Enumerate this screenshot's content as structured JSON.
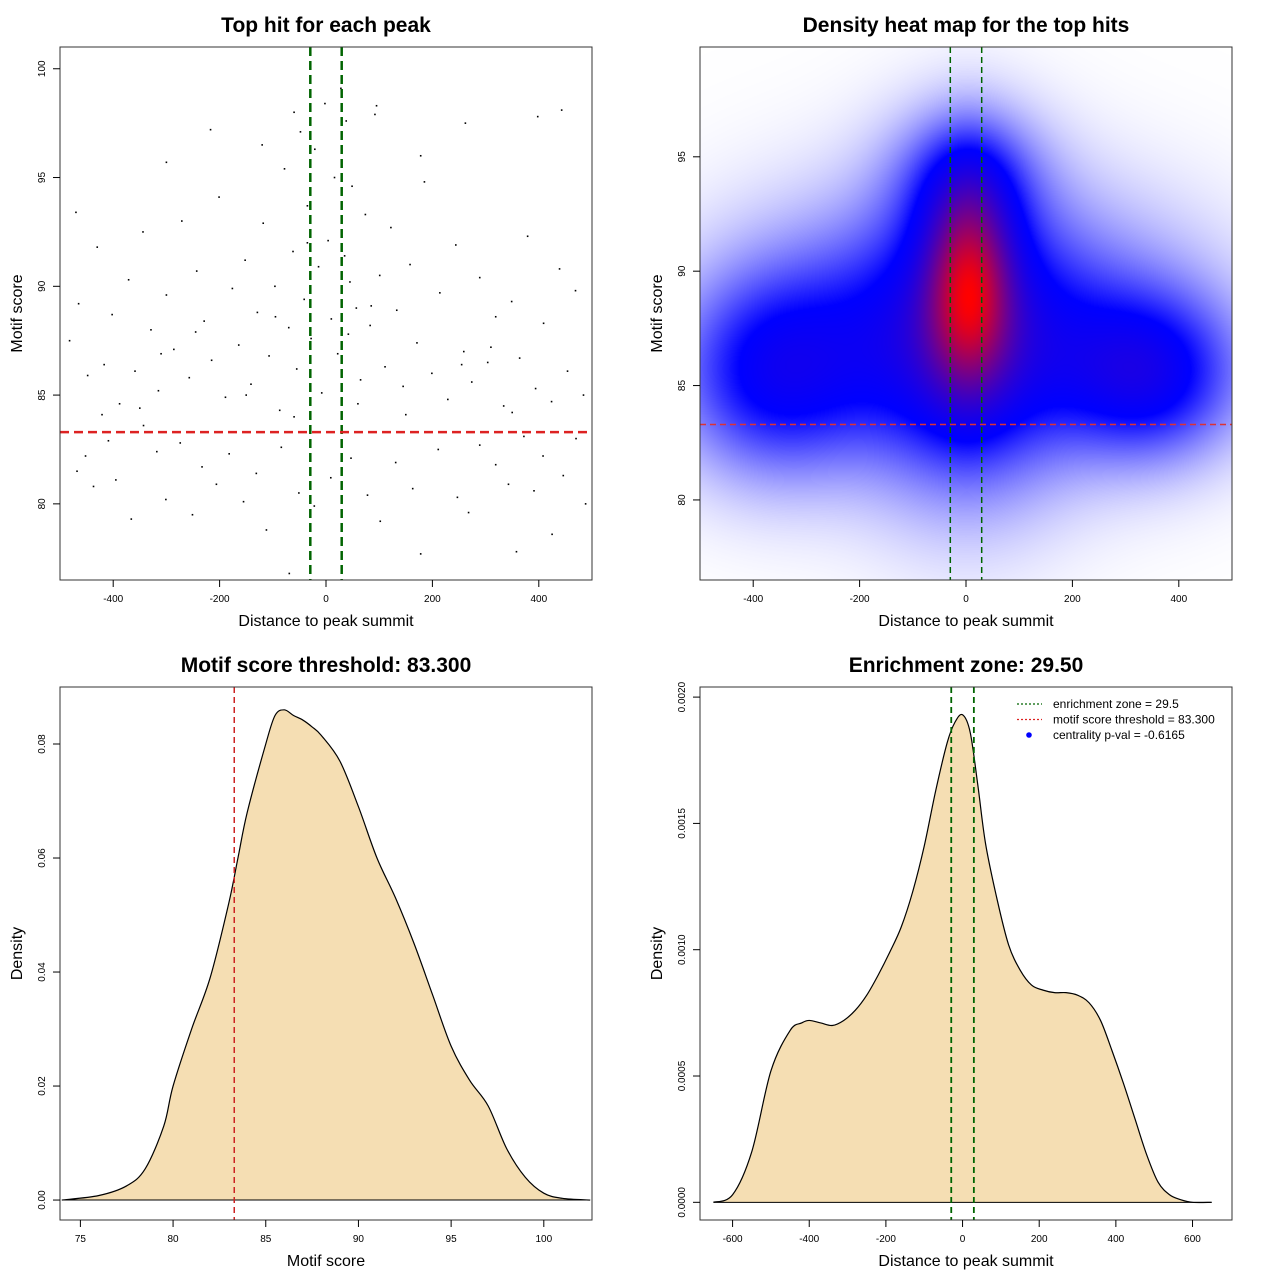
{
  "chart_data": [
    {
      "type": "scatter",
      "title": "Top hit for each peak",
      "xlabel": "Distance to peak summit",
      "ylabel": "Motif score",
      "xlim": [
        -500,
        500
      ],
      "ylim": [
        76.5,
        101
      ],
      "xticks": [
        "-400",
        "-200",
        "0",
        "200",
        "400"
      ],
      "yticks": [
        "80",
        "85",
        "90",
        "95",
        "100"
      ],
      "vlines": [
        -29.5,
        29.5
      ],
      "hline": 83.3,
      "colors": {
        "points": "#000000",
        "vlines": "#006400",
        "hline": "#DD2222"
      },
      "points": [
        [
          -468,
          81.5
        ],
        [
          -452,
          82.2
        ],
        [
          -437,
          80.8
        ],
        [
          -421,
          84.1
        ],
        [
          -409,
          82.9
        ],
        [
          -395,
          81.1
        ],
        [
          -366,
          79.3
        ],
        [
          -343,
          83.6
        ],
        [
          -318,
          82.4
        ],
        [
          -301,
          80.2
        ],
        [
          -274,
          82.8
        ],
        [
          -251,
          79.5
        ],
        [
          -233,
          81.7
        ],
        [
          -206,
          80.9
        ],
        [
          -182,
          82.3
        ],
        [
          -155,
          80.1
        ],
        [
          -131,
          81.4
        ],
        [
          -112,
          78.8
        ],
        [
          -84,
          82.6
        ],
        [
          -69,
          76.8
        ],
        [
          -51,
          80.5
        ],
        [
          -22,
          79.9
        ],
        [
          9,
          81.2
        ],
        [
          47,
          82.1
        ],
        [
          78,
          80.4
        ],
        [
          102,
          79.2
        ],
        [
          131,
          81.9
        ],
        [
          163,
          80.7
        ],
        [
          178,
          77.7
        ],
        [
          211,
          82.5
        ],
        [
          247,
          80.3
        ],
        [
          268,
          79.6
        ],
        [
          289,
          82.7
        ],
        [
          319,
          81.8
        ],
        [
          343,
          80.9
        ],
        [
          358,
          77.8
        ],
        [
          372,
          83.1
        ],
        [
          391,
          80.6
        ],
        [
          408,
          82.2
        ],
        [
          425,
          78.6
        ],
        [
          446,
          81.3
        ],
        [
          470,
          83.0
        ],
        [
          488,
          80.0
        ],
        [
          -482,
          87.5
        ],
        [
          -465,
          89.2
        ],
        [
          -448,
          85.9
        ],
        [
          -430,
          91.8
        ],
        [
          -417,
          86.4
        ],
        [
          -402,
          88.7
        ],
        [
          -388,
          84.6
        ],
        [
          -371,
          90.3
        ],
        [
          -359,
          86.1
        ],
        [
          -344,
          92.5
        ],
        [
          -329,
          88.0
        ],
        [
          -315,
          85.2
        ],
        [
          -300,
          89.6
        ],
        [
          -286,
          87.1
        ],
        [
          -271,
          93.0
        ],
        [
          -257,
          85.8
        ],
        [
          -243,
          90.7
        ],
        [
          -229,
          88.4
        ],
        [
          -215,
          86.6
        ],
        [
          -201,
          94.1
        ],
        [
          -189,
          84.9
        ],
        [
          -176,
          89.9
        ],
        [
          -164,
          87.3
        ],
        [
          -152,
          91.2
        ],
        [
          -141,
          85.5
        ],
        [
          -129,
          88.8
        ],
        [
          -118,
          92.9
        ],
        [
          -107,
          86.8
        ],
        [
          -96,
          90.0
        ],
        [
          -87,
          84.3
        ],
        [
          -78,
          95.4
        ],
        [
          -70,
          88.1
        ],
        [
          -62,
          91.6
        ],
        [
          -55,
          86.2
        ],
        [
          -48,
          97.1
        ],
        [
          -41,
          89.4
        ],
        [
          -35,
          93.7
        ],
        [
          -28,
          87.6
        ],
        [
          -21,
          96.3
        ],
        [
          -14,
          90.9
        ],
        [
          -8,
          85.1
        ],
        [
          -2,
          98.4
        ],
        [
          4,
          92.1
        ],
        [
          10,
          88.5
        ],
        [
          16,
          95.0
        ],
        [
          22,
          86.9
        ],
        [
          28,
          99.1
        ],
        [
          35,
          91.4
        ],
        [
          42,
          87.8
        ],
        [
          49,
          94.6
        ],
        [
          57,
          89.0
        ],
        [
          65,
          85.7
        ],
        [
          74,
          93.3
        ],
        [
          83,
          88.2
        ],
        [
          92,
          97.9
        ],
        [
          101,
          90.5
        ],
        [
          111,
          86.3
        ],
        [
          122,
          92.7
        ],
        [
          133,
          88.9
        ],
        [
          145,
          85.4
        ],
        [
          158,
          91.0
        ],
        [
          171,
          87.4
        ],
        [
          185,
          94.8
        ],
        [
          199,
          86.0
        ],
        [
          214,
          89.7
        ],
        [
          229,
          84.8
        ],
        [
          244,
          91.9
        ],
        [
          259,
          87.0
        ],
        [
          274,
          85.6
        ],
        [
          289,
          90.4
        ],
        [
          304,
          86.5
        ],
        [
          319,
          88.6
        ],
        [
          334,
          84.5
        ],
        [
          349,
          89.3
        ],
        [
          364,
          86.7
        ],
        [
          379,
          92.3
        ],
        [
          394,
          85.3
        ],
        [
          409,
          88.3
        ],
        [
          424,
          84.7
        ],
        [
          439,
          90.8
        ],
        [
          454,
          86.1
        ],
        [
          469,
          89.8
        ],
        [
          484,
          85.0
        ],
        [
          -470,
          93.4
        ],
        [
          -300,
          95.7
        ],
        [
          -217,
          97.2
        ],
        [
          -120,
          96.5
        ],
        [
          -60,
          98.0
        ],
        [
          38,
          97.6
        ],
        [
          95,
          98.3
        ],
        [
          178,
          96.0
        ],
        [
          262,
          97.5
        ],
        [
          398,
          97.8
        ],
        [
          443,
          98.1
        ],
        [
          -350,
          84.4
        ],
        [
          -150,
          85.0
        ],
        [
          150,
          84.1
        ],
        [
          350,
          84.2
        ],
        [
          -245,
          87.9
        ],
        [
          -35,
          92.0
        ],
        [
          45,
          90.2
        ],
        [
          255,
          86.4
        ],
        [
          -95,
          88.6
        ],
        [
          85,
          89.1
        ],
        [
          -310,
          86.9
        ],
        [
          310,
          87.2
        ],
        [
          -60,
          84.0
        ],
        [
          60,
          84.6
        ]
      ]
    },
    {
      "type": "heatmap",
      "title": "Density heat map for the top hits",
      "xlabel": "Distance to peak summit",
      "ylabel": "Motif score",
      "xlim": [
        -500,
        500
      ],
      "ylim": [
        76.5,
        99.8
      ],
      "xticks": [
        "-400",
        "-200",
        "0",
        "200",
        "400"
      ],
      "yticks": [
        "80",
        "85",
        "90",
        "95"
      ],
      "vlines": [
        -29.5,
        29.5
      ],
      "hline": 83.3,
      "colors": {
        "low": "#ffffff",
        "mid": "#0000ff",
        "high": "#ff0000",
        "vlines": "#006400",
        "hline": "#DD3333"
      },
      "components": [
        {
          "x": 5,
          "y": 89.5,
          "sx": 55,
          "sy": 3.0,
          "w": 1.0
        },
        {
          "x": 0,
          "y": 87.0,
          "sx": 130,
          "sy": 4.2,
          "w": 0.55
        },
        {
          "x": -360,
          "y": 85.5,
          "sx": 120,
          "sy": 2.8,
          "w": 0.45
        },
        {
          "x": 340,
          "y": 85.5,
          "sx": 110,
          "sy": 2.3,
          "w": 0.5
        },
        {
          "x": -200,
          "y": 87.5,
          "sx": 180,
          "sy": 3.5,
          "w": 0.25
        },
        {
          "x": 200,
          "y": 87.5,
          "sx": 180,
          "sy": 3.5,
          "w": 0.25
        },
        {
          "x": 0,
          "y": 94.0,
          "sx": 90,
          "sy": 2.0,
          "w": 0.3
        }
      ]
    },
    {
      "type": "area",
      "title": "Motif score threshold: 83.300",
      "xlabel": "Motif score",
      "ylabel": "Density",
      "xlim": [
        73.9,
        102.6
      ],
      "ylim": [
        -0.0035,
        0.09
      ],
      "xticks": [
        "75",
        "80",
        "85",
        "90",
        "95",
        "100"
      ],
      "yticks": [
        "0.00",
        "0.02",
        "0.04",
        "0.06",
        "0.08"
      ],
      "vline": 83.3,
      "colors": {
        "fill": "#F5DEB3",
        "line": "#000000",
        "vline": "#CC2222"
      },
      "x": [
        74.0,
        76.0,
        77.5,
        78.5,
        79.5,
        80.0,
        81.0,
        82.0,
        83.0,
        83.5,
        84.0,
        85.0,
        85.5,
        86.0,
        86.5,
        87.0,
        87.5,
        88.0,
        89.0,
        90.0,
        91.0,
        92.0,
        93.0,
        94.0,
        95.0,
        96.0,
        97.0,
        98.0,
        99.0,
        100.0,
        101.0,
        102.5
      ],
      "y": [
        0.0,
        0.0008,
        0.0025,
        0.0055,
        0.013,
        0.02,
        0.03,
        0.039,
        0.052,
        0.06,
        0.068,
        0.08,
        0.085,
        0.086,
        0.085,
        0.0842,
        0.083,
        0.0815,
        0.077,
        0.069,
        0.06,
        0.053,
        0.045,
        0.036,
        0.027,
        0.021,
        0.0165,
        0.009,
        0.004,
        0.0012,
        0.0003,
        0.0
      ]
    },
    {
      "type": "area",
      "title": "Enrichment zone: 29.50",
      "xlabel": "Distance to peak summit",
      "ylabel": "Density",
      "xlim": [
        -685,
        703
      ],
      "ylim": [
        -7e-05,
        0.00204
      ],
      "xticks": [
        "-600",
        "-400",
        "-200",
        "0",
        "200",
        "400",
        "600"
      ],
      "yticks": [
        "0.0000",
        "0.0005",
        "0.0010",
        "0.0015",
        "0.0020"
      ],
      "vlines": [
        -29.5,
        29.5
      ],
      "colors": {
        "fill": "#F5DEB3",
        "line": "#000000",
        "vlines": "#006400"
      },
      "legend": {
        "position": "top-right",
        "entries": [
          {
            "label": "enrichment zone = 29.5",
            "color": "#006400",
            "style": "dotted-line"
          },
          {
            "label": "motif score threshold = 83.300",
            "color": "#DD2222",
            "style": "dotted-line"
          },
          {
            "label": "centrality p-val = -0.6165",
            "color": "#0000FF",
            "style": "point"
          }
        ]
      },
      "x": [
        -650,
        -600,
        -550,
        -500,
        -450,
        -420,
        -400,
        -370,
        -340,
        -310,
        -280,
        -250,
        -220,
        -190,
        -160,
        -130,
        -100,
        -70,
        -40,
        -20,
        0,
        20,
        40,
        60,
        90,
        120,
        150,
        180,
        210,
        240,
        270,
        300,
        330,
        360,
        390,
        420,
        450,
        480,
        510,
        540,
        570,
        600,
        650
      ],
      "y": [
        0.0,
        3e-05,
        0.0002,
        0.00052,
        0.00068,
        0.00071,
        0.00072,
        0.00071,
        0.0007,
        0.00072,
        0.00076,
        0.00082,
        0.0009,
        0.00099,
        0.00109,
        0.00123,
        0.00141,
        0.00163,
        0.00182,
        0.0019,
        0.00193,
        0.00186,
        0.00165,
        0.00142,
        0.0012,
        0.00102,
        0.00092,
        0.00086,
        0.00084,
        0.00083,
        0.00083,
        0.00082,
        0.00079,
        0.00072,
        0.0006,
        0.00047,
        0.00033,
        0.00019,
        8e-05,
        3e-05,
        1e-05,
        0.0,
        0.0
      ]
    }
  ]
}
